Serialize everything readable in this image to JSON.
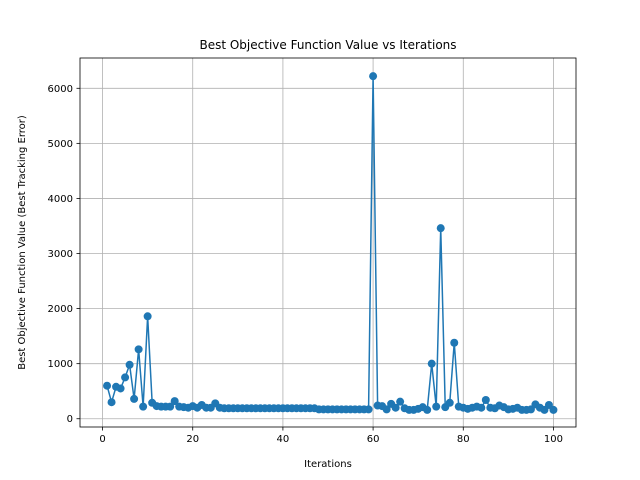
{
  "chart_data": {
    "type": "line",
    "title": "Best Objective Function Value vs Iterations",
    "xlabel": "Iterations",
    "ylabel": "Best Objective Function Value (Best Tracking Error)",
    "xlim": [
      -5,
      105
    ],
    "ylim": [
      -150,
      6550
    ],
    "xticks": [
      0,
      20,
      40,
      60,
      80,
      100
    ],
    "yticks": [
      0,
      1000,
      2000,
      3000,
      4000,
      5000,
      6000
    ],
    "grid": true,
    "line_color": "#1f77b4",
    "marker": "circle",
    "series": [
      {
        "x": [
          1,
          2,
          3,
          4,
          5,
          6,
          7,
          8,
          9,
          10,
          11,
          12,
          13,
          14,
          15,
          16,
          17,
          18,
          19,
          20,
          21,
          22,
          23,
          24,
          25,
          26,
          27,
          28,
          29,
          30,
          31,
          32,
          33,
          34,
          35,
          36,
          37,
          38,
          39,
          40,
          41,
          42,
          43,
          44,
          45,
          46,
          47,
          48,
          49,
          50,
          51,
          52,
          53,
          54,
          55,
          56,
          57,
          58,
          59,
          60,
          61,
          62,
          63,
          64,
          65,
          66,
          67,
          68,
          69,
          70,
          71,
          72,
          73,
          74,
          75,
          76,
          77,
          78,
          79,
          80,
          81,
          82,
          83,
          84,
          85,
          86,
          87,
          88,
          89,
          90,
          91,
          92,
          93,
          94,
          95,
          96,
          97,
          98,
          99,
          100
        ],
        "y": [
          600,
          300,
          580,
          550,
          750,
          980,
          360,
          1260,
          220,
          1860,
          290,
          230,
          220,
          220,
          220,
          320,
          220,
          210,
          200,
          230,
          200,
          250,
          200,
          200,
          280,
          200,
          190,
          190,
          190,
          190,
          190,
          190,
          190,
          190,
          190,
          190,
          190,
          190,
          190,
          190,
          190,
          190,
          190,
          190,
          190,
          190,
          190,
          170,
          170,
          170,
          170,
          170,
          170,
          170,
          170,
          170,
          170,
          170,
          170,
          6220,
          240,
          230,
          170,
          270,
          200,
          310,
          190,
          160,
          160,
          180,
          210,
          160,
          1000,
          220,
          3460,
          210,
          290,
          1380,
          220,
          200,
          180,
          200,
          220,
          200,
          340,
          200,
          190,
          240,
          210,
          170,
          180,
          200,
          160,
          160,
          170,
          260,
          200,
          160,
          250,
          160
        ]
      }
    ]
  }
}
